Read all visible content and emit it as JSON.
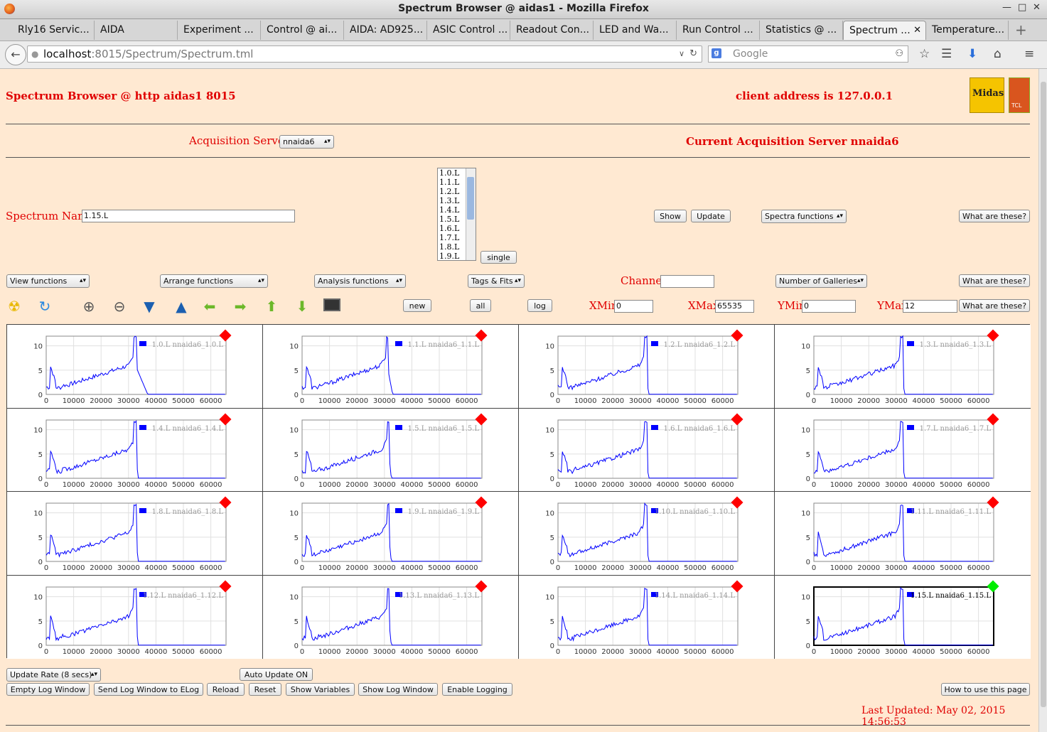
{
  "window": {
    "title": "Spectrum Browser @ aidas1 - Mozilla Firefox"
  },
  "tabs": [
    {
      "label": "Rly16 Servic..."
    },
    {
      "label": "AIDA"
    },
    {
      "label": "Experiment ..."
    },
    {
      "label": "Control @ ai..."
    },
    {
      "label": "AIDA: AD925..."
    },
    {
      "label": "ASIC Control ..."
    },
    {
      "label": "Readout Con..."
    },
    {
      "label": "LED and Wa..."
    },
    {
      "label": "Run Control ..."
    },
    {
      "label": "Statistics @ ..."
    },
    {
      "label": "Spectrum ...",
      "active": true
    },
    {
      "label": "Temperature..."
    }
  ],
  "navbar": {
    "url_host": "localhost",
    "url_rest": ":8015/Spectrum/Spectrum.tml",
    "search_placeholder": "Google"
  },
  "header": {
    "title": "Spectrum Browser @ http aidas1 8015",
    "client_address": "client address is 127.0.0.1",
    "logo_midas": "Midas",
    "logo_tcl": "TCL"
  },
  "acquisition": {
    "label": "Acquisition Servers",
    "selected": "nnaida6",
    "current": "Current Acquisition Server nnaida6"
  },
  "spectrum": {
    "name_label": "Spectrum Name:",
    "name_value": "1.15.L",
    "list_items": [
      "1.0.L",
      "1.1.L",
      "1.2.L",
      "1.3.L",
      "1.4.L",
      "1.5.L",
      "1.6.L",
      "1.7.L",
      "1.8.L",
      "1.9.L"
    ],
    "single_label": "single",
    "show_label": "Show",
    "update_label": "Update",
    "spectra_functions": "Spectra functions",
    "what_label": "What are these?"
  },
  "functions": {
    "view": "View functions",
    "arrange": "Arrange functions",
    "analysis": "Analysis functions",
    "tags": "Tags & Fits",
    "channel_label": "Channel:",
    "channel_value": "",
    "galleries": "Number of Galleries",
    "what_label": "What are these?"
  },
  "toolbar": {
    "new_label": "new",
    "all_label": "all",
    "log_label": "log",
    "xmin_label": "XMin",
    "xmin_value": "0",
    "xmax_label": "XMax",
    "xmax_value": "65535",
    "ymin_label": "YMin",
    "ymin_value": "0",
    "ymax_label": "YMax",
    "ymax_value": "12",
    "what_label": "What are these?",
    "icons": [
      "radiation-icon",
      "refresh-icon",
      "zoom-in-icon",
      "zoom-out-icon",
      "expand-down-icon",
      "expand-up-icon",
      "left-arrow-icon",
      "right-arrow-icon",
      "up-arrow-icon",
      "down-arrow-icon",
      "screen-icon"
    ]
  },
  "chart_data": {
    "type": "line",
    "xlim": [
      0,
      65535
    ],
    "ylim": [
      0,
      12
    ],
    "xticks": [
      "0",
      "10000",
      "20000",
      "30000",
      "40000",
      "50000",
      "60000"
    ],
    "yticks": [
      "0",
      "5",
      "10"
    ],
    "series": [
      {
        "name": "1.0.L nnaida6_1.0.L",
        "status": "red",
        "peak": 32500,
        "peak_y": 12,
        "end": 37000
      },
      {
        "name": "1.1.L nnaida6_1.1.L",
        "status": "red",
        "peak": 31000,
        "peak_y": 12,
        "end": 33000
      },
      {
        "name": "1.2.L nnaida6_1.2.L",
        "status": "red",
        "peak": 32000,
        "peak_y": 12,
        "end": 33000
      },
      {
        "name": "1.3.L nnaida6_1.3.L",
        "status": "red",
        "peak": 32000,
        "peak_y": 12,
        "end": 33000
      },
      {
        "name": "1.4.L nnaida6_1.4.L",
        "status": "red",
        "peak": 32500,
        "peak_y": 12,
        "end": 33500
      },
      {
        "name": "1.5.L nnaida6_1.5.L",
        "status": "red",
        "peak": 31500,
        "peak_y": 12,
        "end": 32500
      },
      {
        "name": "1.6.L nnaida6_1.6.L",
        "status": "red",
        "peak": 32000,
        "peak_y": 12,
        "end": 33000
      },
      {
        "name": "1.7.L nnaida6_1.7.L",
        "status": "red",
        "peak": 32000,
        "peak_y": 12,
        "end": 33000
      },
      {
        "name": "1.8.L nnaida6_1.8.L",
        "status": "red",
        "peak": 32500,
        "peak_y": 12,
        "end": 33500
      },
      {
        "name": "1.9.L nnaida6_1.9.L",
        "status": "red",
        "peak": 31500,
        "peak_y": 12,
        "end": 32500
      },
      {
        "name": "1.10.L nnaida6_1.10.L",
        "status": "red",
        "peak": 32000,
        "peak_y": 12,
        "end": 33000
      },
      {
        "name": "1.11.L nnaida6_1.11.L",
        "status": "red",
        "peak": 32000,
        "peak_y": 12,
        "end": 33000
      },
      {
        "name": "1.12.L nnaida6_1.12.L",
        "status": "red",
        "peak": 32500,
        "peak_y": 12,
        "end": 33500
      },
      {
        "name": "1.13.L nnaida6_1.13.L",
        "status": "red",
        "peak": 31500,
        "peak_y": 12,
        "end": 32500
      },
      {
        "name": "1.14.L nnaida6_1.14.L",
        "status": "red",
        "peak": 32000,
        "peak_y": 12,
        "end": 33000
      },
      {
        "name": "1.15.L nnaida6_1.15.L",
        "status": "green",
        "peak": 32000,
        "peak_y": 12,
        "end": 33000,
        "selected": true
      }
    ]
  },
  "footer": {
    "update_rate": "Update Rate (8 secs)",
    "auto_update": "Auto Update ON",
    "empty_log": "Empty Log Window",
    "send_log": "Send Log Window to ELog",
    "reload": "Reload",
    "reset": "Reset",
    "show_variables": "Show Variables",
    "show_log": "Show Log Window",
    "enable_logging": "Enable Logging",
    "how_to": "How to use this page",
    "last_updated": "Last Updated: May 02, 2015 14:56:53"
  },
  "colors": {
    "page_bg": "#ffe9d2",
    "accent_red": "#e00000",
    "trace_blue": "#0000ff",
    "status_red": "#ff0000",
    "status_green": "#00ee00"
  }
}
